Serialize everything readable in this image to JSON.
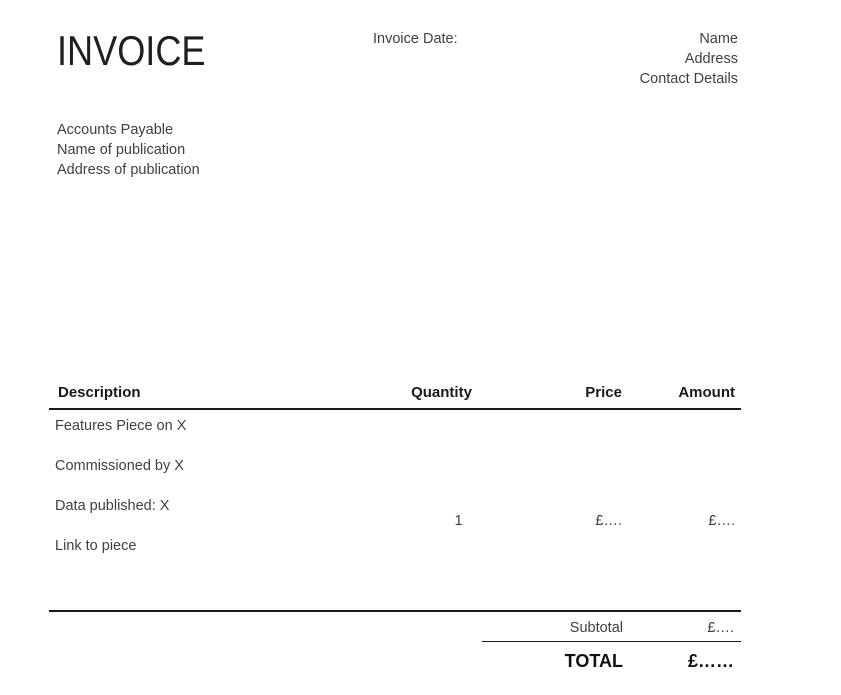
{
  "header": {
    "title": "INVOICE",
    "invoice_date_label": "Invoice Date:",
    "recipient": {
      "name": "Name",
      "address": "Address",
      "contact": "Contact Details"
    }
  },
  "payable": {
    "lines": [
      "Accounts Payable",
      "Name of publication",
      "Address of publication"
    ]
  },
  "table": {
    "headers": {
      "description": "Description",
      "quantity": "Quantity",
      "price": "Price",
      "amount": "Amount"
    },
    "item": {
      "description_lines": [
        "Features Piece on X",
        "Commissioned by X",
        "Data published: X",
        "Link to piece"
      ],
      "quantity": "1",
      "price": "£….",
      "amount": "£…."
    }
  },
  "summary": {
    "subtotal_label": "Subtotal",
    "subtotal_value": "£….",
    "total_label": "TOTAL",
    "total_value": "£……"
  },
  "colors": {
    "background": "#ffffff",
    "text_dark": "#1f1f1f",
    "text_body": "#3f3f3f",
    "rule": "#1a1a1a"
  }
}
